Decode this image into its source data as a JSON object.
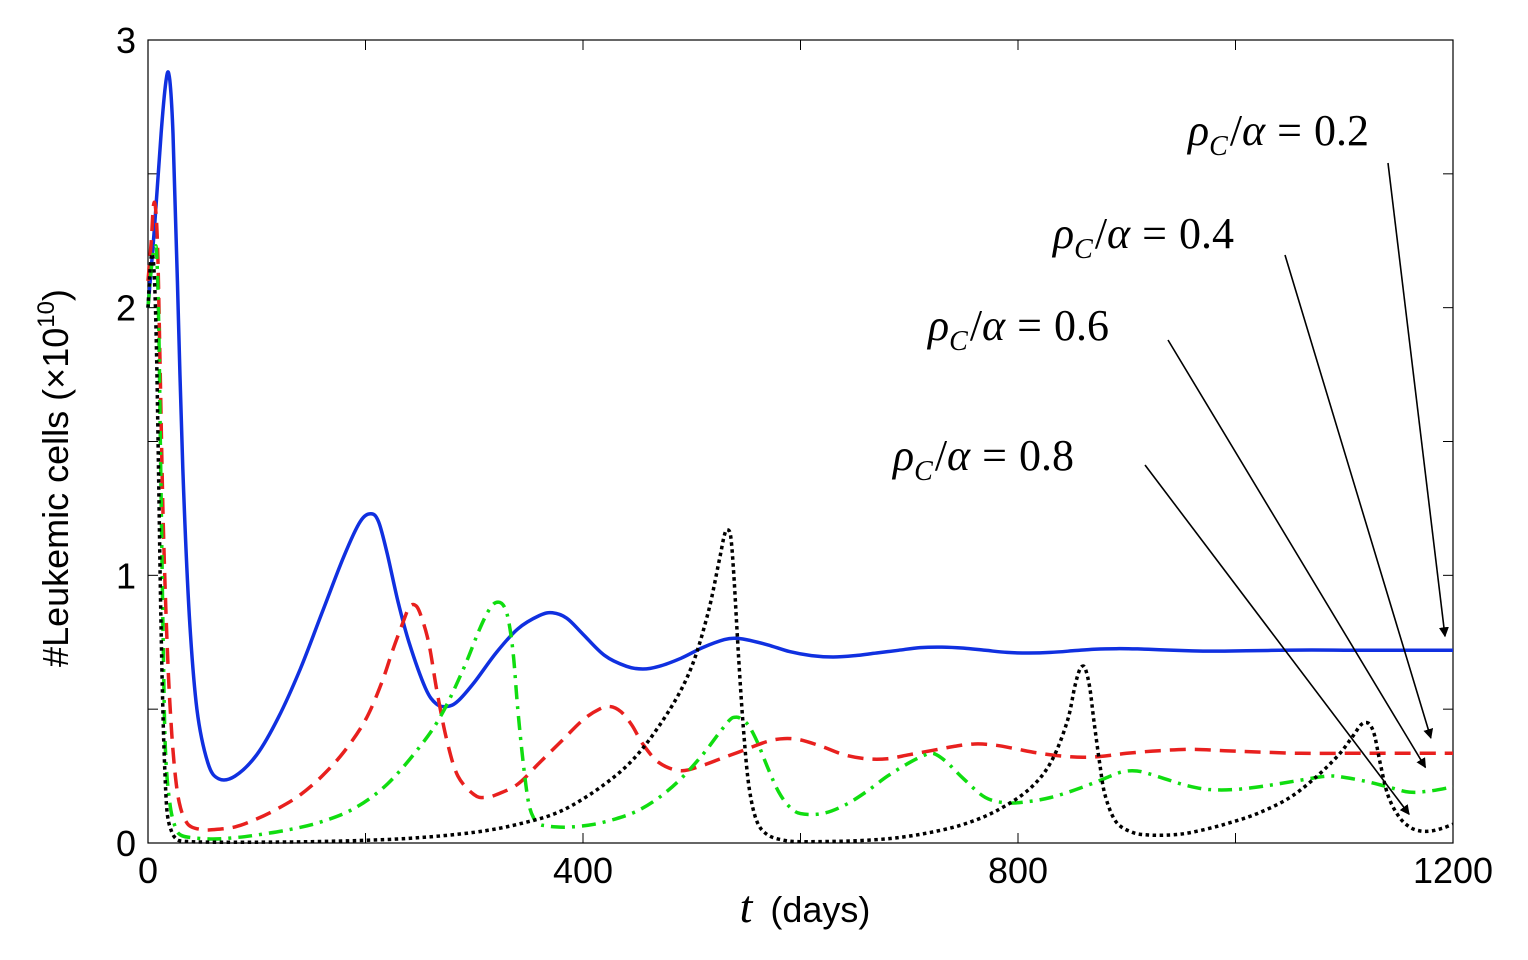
{
  "chart_data": {
    "type": "line",
    "title": "",
    "xlabel_var": "t",
    "xlabel_unit": "(days)",
    "ylabel": "#Leukemic cells (×10",
    "ylabel_exp": "10",
    "ylabel_close": ")",
    "xlim": [
      0,
      1200
    ],
    "ylim": [
      0,
      3
    ],
    "xticks": [
      0,
      400,
      800,
      1200
    ],
    "xticks_minor": [
      200,
      600,
      1000
    ],
    "yticks": [
      0,
      1,
      2,
      3
    ],
    "yticks_minor": [
      0.5,
      1.5,
      2.5
    ],
    "grid": false,
    "series": [
      {
        "name": "ρ_C/α = 0.2",
        "color": "#1030e0",
        "style": "solid",
        "x": [
          0,
          6,
          12,
          17,
          20,
          23,
          27,
          32,
          38,
          45,
          55,
          65,
          80,
          100,
          120,
          140,
          160,
          180,
          195,
          205,
          212,
          220,
          230,
          240,
          255,
          265,
          275,
          285,
          300,
          320,
          340,
          360,
          372,
          385,
          400,
          420,
          440,
          455,
          470,
          490,
          510,
          530,
          540,
          550,
          570,
          590,
          610,
          630,
          650,
          670,
          690,
          710,
          730,
          750,
          770,
          790,
          810,
          830,
          850,
          870,
          890,
          910,
          930,
          950,
          970,
          990,
          1010,
          1040,
          1070,
          1100,
          1130,
          1160,
          1200
        ],
        "y": [
          2.0,
          2.3,
          2.65,
          2.86,
          2.85,
          2.65,
          2.1,
          1.4,
          0.85,
          0.5,
          0.3,
          0.24,
          0.25,
          0.33,
          0.47,
          0.65,
          0.86,
          1.07,
          1.2,
          1.23,
          1.2,
          1.08,
          0.9,
          0.75,
          0.58,
          0.52,
          0.51,
          0.53,
          0.6,
          0.71,
          0.8,
          0.85,
          0.86,
          0.84,
          0.78,
          0.7,
          0.66,
          0.65,
          0.66,
          0.69,
          0.73,
          0.76,
          0.765,
          0.76,
          0.74,
          0.715,
          0.7,
          0.695,
          0.7,
          0.71,
          0.72,
          0.73,
          0.732,
          0.728,
          0.72,
          0.712,
          0.71,
          0.712,
          0.718,
          0.724,
          0.726,
          0.725,
          0.722,
          0.719,
          0.717,
          0.717,
          0.718,
          0.72,
          0.721,
          0.72,
          0.72,
          0.72,
          0.72
        ]
      },
      {
        "name": "ρ_C/α = 0.4",
        "color": "#e8201e",
        "style": "dashed",
        "x": [
          0,
          3,
          5,
          7,
          9,
          11,
          14,
          18,
          22,
          26,
          30,
          35,
          40,
          50,
          60,
          80,
          100,
          120,
          140,
          160,
          180,
          200,
          215,
          225,
          235,
          240,
          245,
          250,
          258,
          266,
          275,
          285,
          300,
          310,
          320,
          340,
          360,
          380,
          400,
          415,
          425,
          435,
          445,
          455,
          470,
          490,
          510,
          530,
          550,
          570,
          585,
          600,
          620,
          640,
          660,
          680,
          700,
          720,
          740,
          760,
          780,
          800,
          820,
          840,
          860,
          880,
          900,
          930,
          960,
          990,
          1020,
          1060,
          1100,
          1140,
          1200
        ],
        "y": [
          2.1,
          2.25,
          2.38,
          2.37,
          2.2,
          1.8,
          1.2,
          0.7,
          0.4,
          0.22,
          0.13,
          0.08,
          0.06,
          0.05,
          0.05,
          0.06,
          0.09,
          0.13,
          0.18,
          0.25,
          0.34,
          0.46,
          0.6,
          0.72,
          0.83,
          0.88,
          0.89,
          0.86,
          0.75,
          0.56,
          0.38,
          0.25,
          0.18,
          0.17,
          0.18,
          0.22,
          0.3,
          0.38,
          0.46,
          0.5,
          0.51,
          0.49,
          0.44,
          0.37,
          0.3,
          0.27,
          0.29,
          0.32,
          0.35,
          0.38,
          0.39,
          0.385,
          0.36,
          0.33,
          0.315,
          0.315,
          0.33,
          0.345,
          0.36,
          0.37,
          0.365,
          0.35,
          0.335,
          0.325,
          0.32,
          0.325,
          0.335,
          0.345,
          0.35,
          0.345,
          0.34,
          0.335,
          0.335,
          0.335,
          0.335
        ]
      },
      {
        "name": "ρ_C/α = 0.6",
        "color": "#10dd10",
        "style": "dashdot",
        "x": [
          0,
          2,
          4,
          6,
          8,
          10,
          12,
          14,
          16,
          20,
          25,
          30,
          40,
          60,
          80,
          100,
          130,
          160,
          190,
          220,
          250,
          270,
          290,
          305,
          315,
          322,
          328,
          332,
          336,
          340,
          345,
          350,
          355,
          360,
          365,
          375,
          390,
          410,
          430,
          450,
          470,
          490,
          510,
          525,
          535,
          540,
          545,
          552,
          560,
          570,
          580,
          590,
          600,
          620,
          640,
          660,
          680,
          700,
          715,
          720,
          725,
          735,
          750,
          770,
          790,
          810,
          830,
          850,
          870,
          885,
          895,
          905,
          915,
          935,
          955,
          975,
          1000,
          1030,
          1060,
          1085,
          1100,
          1120,
          1140,
          1160,
          1180,
          1200
        ],
        "y": [
          2.0,
          2.1,
          2.18,
          2.22,
          2.2,
          1.9,
          1.3,
          0.75,
          0.35,
          0.15,
          0.06,
          0.03,
          0.02,
          0.015,
          0.02,
          0.03,
          0.05,
          0.08,
          0.13,
          0.22,
          0.36,
          0.48,
          0.65,
          0.8,
          0.88,
          0.9,
          0.88,
          0.82,
          0.7,
          0.5,
          0.3,
          0.15,
          0.09,
          0.07,
          0.065,
          0.06,
          0.06,
          0.07,
          0.09,
          0.12,
          0.17,
          0.24,
          0.33,
          0.41,
          0.46,
          0.47,
          0.465,
          0.44,
          0.38,
          0.28,
          0.19,
          0.135,
          0.11,
          0.11,
          0.14,
          0.19,
          0.25,
          0.3,
          0.33,
          0.335,
          0.33,
          0.3,
          0.24,
          0.17,
          0.15,
          0.155,
          0.17,
          0.195,
          0.225,
          0.25,
          0.265,
          0.27,
          0.265,
          0.24,
          0.215,
          0.2,
          0.2,
          0.215,
          0.235,
          0.25,
          0.245,
          0.23,
          0.21,
          0.19,
          0.195,
          0.21
        ]
      },
      {
        "name": "ρ_C/α = 0.8",
        "color": "#000000",
        "style": "dotted",
        "x": [
          0,
          2,
          4,
          6,
          8,
          10,
          12,
          14,
          16,
          18,
          22,
          26,
          30,
          40,
          60,
          100,
          150,
          200,
          250,
          300,
          340,
          380,
          420,
          450,
          480,
          500,
          515,
          525,
          530,
          533,
          536,
          539,
          543,
          548,
          553,
          560,
          570,
          585,
          600,
          630,
          660,
          690,
          720,
          750,
          780,
          810,
          830,
          845,
          852,
          856,
          859,
          862,
          866,
          870,
          875,
          880,
          890,
          905,
          920,
          940,
          960,
          990,
          1020,
          1050,
          1075,
          1095,
          1108,
          1115,
          1120,
          1124,
          1128,
          1133,
          1140,
          1150,
          1160,
          1170,
          1180,
          1190,
          1200
        ],
        "y": [
          2.0,
          2.15,
          2.2,
          2.1,
          1.8,
          1.3,
          0.8,
          0.45,
          0.22,
          0.1,
          0.04,
          0.015,
          0.008,
          0.005,
          0.003,
          0.003,
          0.005,
          0.01,
          0.02,
          0.04,
          0.07,
          0.12,
          0.22,
          0.33,
          0.5,
          0.66,
          0.86,
          1.05,
          1.15,
          1.17,
          1.14,
          0.98,
          0.7,
          0.4,
          0.2,
          0.08,
          0.03,
          0.01,
          0.005,
          0.006,
          0.01,
          0.02,
          0.04,
          0.07,
          0.12,
          0.2,
          0.3,
          0.45,
          0.58,
          0.64,
          0.66,
          0.65,
          0.58,
          0.45,
          0.3,
          0.18,
          0.08,
          0.04,
          0.03,
          0.03,
          0.04,
          0.07,
          0.11,
          0.17,
          0.25,
          0.33,
          0.4,
          0.44,
          0.45,
          0.44,
          0.4,
          0.3,
          0.18,
          0.1,
          0.06,
          0.045,
          0.045,
          0.055,
          0.07
        ]
      }
    ],
    "annotations": [
      {
        "var1": "ρ",
        "sub": "C",
        "op": "/",
        "var2": "α",
        "eq": "=",
        "val": "0.2",
        "target": [
          1200,
          0.72
        ]
      },
      {
        "var1": "ρ",
        "sub": "C",
        "op": "/",
        "var2": "α",
        "eq": "=",
        "val": "0.4",
        "target": [
          1187,
          0.34
        ]
      },
      {
        "var1": "ρ",
        "sub": "C",
        "op": "/",
        "var2": "α",
        "eq": "=",
        "val": "0.6",
        "target": [
          1182,
          0.23
        ]
      },
      {
        "var1": "ρ",
        "sub": "C",
        "op": "/",
        "var2": "α",
        "eq": "=",
        "val": "0.8",
        "target": [
          1167,
          0.055
        ]
      }
    ]
  }
}
